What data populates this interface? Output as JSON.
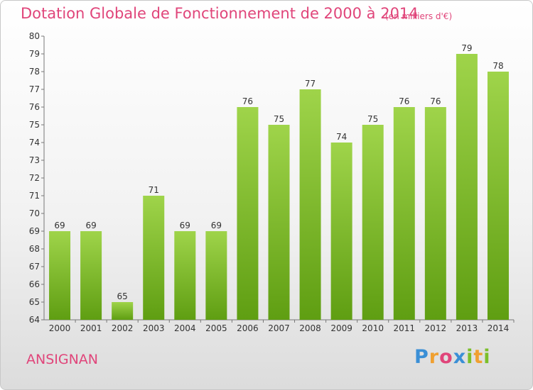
{
  "title": "Dotation Globale de Fonctionnement de 2000 à 2014",
  "subtitle": "(en milliers d'€)",
  "commune": "ANSIGNAN",
  "logo": {
    "letters": [
      "P",
      "r",
      "o",
      "x",
      "i",
      "t",
      "i"
    ],
    "colors": [
      "#3a8fd6",
      "#f0a030",
      "#e0457a",
      "#3a8fd6",
      "#7bbf2a",
      "#f0a030",
      "#7bbf2a"
    ]
  },
  "colors": {
    "bar_top": "#9fd44a",
    "bar_bottom": "#5f9e12",
    "title": "#e0457a"
  },
  "chart_data": {
    "type": "bar",
    "categories": [
      "2000",
      "2001",
      "2002",
      "2003",
      "2004",
      "2005",
      "2006",
      "2007",
      "2008",
      "2009",
      "2010",
      "2011",
      "2012",
      "2013",
      "2014"
    ],
    "values": [
      69,
      69,
      65,
      71,
      69,
      69,
      76,
      75,
      77,
      74,
      75,
      76,
      76,
      79,
      78
    ],
    "ylim": [
      64,
      80
    ],
    "yticks": [
      64,
      65,
      66,
      67,
      68,
      69,
      70,
      71,
      72,
      73,
      74,
      75,
      76,
      77,
      78,
      79,
      80
    ],
    "grid": false,
    "data_labels": true
  }
}
